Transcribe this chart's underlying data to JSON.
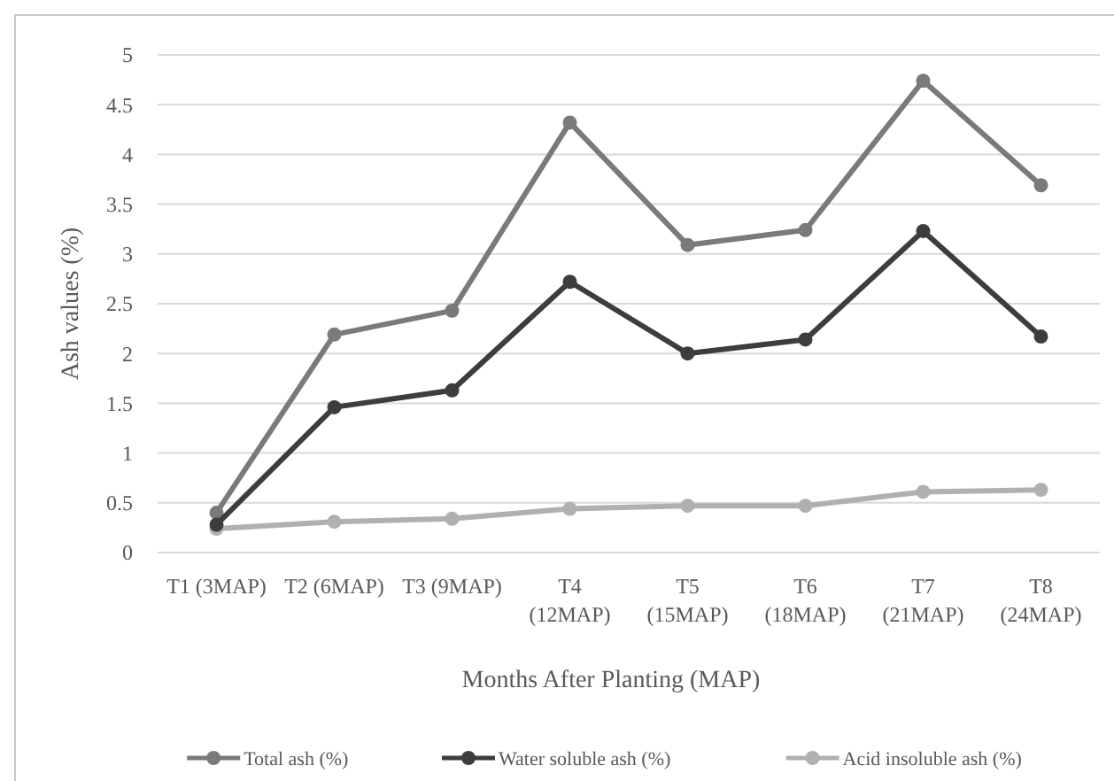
{
  "chart_data": {
    "type": "line",
    "xlabel": "Months After Planting (MAP)",
    "ylabel": "Ash values (%)",
    "categories": [
      "T1 (3MAP)",
      "T2 (6MAP)",
      "T3 (9MAP)",
      "T4 (12MAP)",
      "T5 (15MAP)",
      "T6 (18MAP)",
      "T7 (21MAP)",
      "T8 (24MAP)"
    ],
    "series": [
      {
        "name": "Total ash (%)",
        "color": "#7a7a7a",
        "values": [
          0.4,
          2.19,
          2.43,
          4.32,
          3.09,
          3.24,
          4.74,
          3.69
        ]
      },
      {
        "name": "Water soluble ash (%)",
        "color": "#3d3d3d",
        "values": [
          0.28,
          1.46,
          1.63,
          2.72,
          2.0,
          2.14,
          3.23,
          2.17
        ]
      },
      {
        "name": "Acid insoluble ash (%)",
        "color": "#b0b0b0",
        "values": [
          0.24,
          0.31,
          0.34,
          0.44,
          0.47,
          0.47,
          0.61,
          0.63
        ]
      }
    ],
    "ylim": [
      0,
      5
    ],
    "yticks": [
      0,
      0.5,
      1,
      1.5,
      2,
      2.5,
      3,
      3.5,
      4,
      4.5,
      5
    ],
    "grid": "y",
    "legend": "bottom",
    "marker": "circle",
    "line_style": "solid"
  }
}
